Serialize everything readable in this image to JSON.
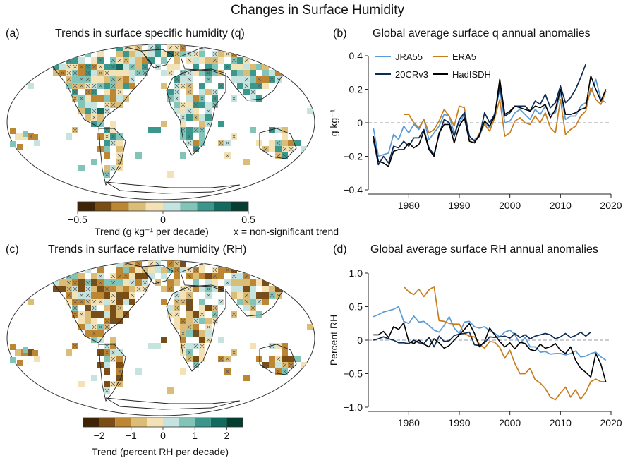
{
  "figure_title": "Changes in Surface Humidity",
  "colors": {
    "JRA55": "#5b9bd5",
    "ERA5": "#c87d1d",
    "20CRv3": "#0d2b55",
    "HadISDH": "#000000",
    "zero_line": "#9a9aa8",
    "land_outline": "#222222",
    "cross": "#555555"
  },
  "panels": {
    "a": {
      "letter": "(a)",
      "title": "Trends in surface specific humidity (q)",
      "colorbar": {
        "colors": [
          "#3f2306",
          "#7a4d14",
          "#bd8632",
          "#dcbd78",
          "#f2e2b6",
          "#c5e3df",
          "#83c4b9",
          "#3b968b",
          "#136b5f",
          "#053d30"
        ],
        "tick_labels": [
          "−0.5",
          "0",
          "0.5"
        ],
        "tick_values": [
          -0.5,
          0,
          0.5
        ],
        "range": [
          -0.5,
          0.5
        ],
        "label": "Trend (g kg⁻¹ per decade)",
        "note": "x = non-significant trend"
      }
    },
    "b": {
      "letter": "(b)",
      "title": "Global average surface q annual anomalies",
      "ylabel": "g kg⁻¹"
    },
    "c": {
      "letter": "(c)",
      "title": "Trends in surface relative humidity (RH)",
      "colorbar": {
        "colors": [
          "#3f2306",
          "#7a4d14",
          "#bd8632",
          "#dcbd78",
          "#f2e2b6",
          "#c5e3df",
          "#83c4b9",
          "#3b968b",
          "#136b5f",
          "#053d30"
        ],
        "tick_labels": [
          "−2",
          "−1",
          "0",
          "1",
          "2"
        ],
        "tick_values": [
          -2,
          -1,
          0,
          1,
          2
        ],
        "range": [
          -2.5,
          2.5
        ],
        "label": "Trend (percent RH per decade)"
      }
    },
    "d": {
      "letter": "(d)",
      "title": "Global average surface RH annual anomalies",
      "ylabel": "Percent RH"
    }
  },
  "chart_data": [
    {
      "type": "line",
      "panel": "b",
      "title": "Global average surface q annual anomalies",
      "xlabel": "",
      "ylabel": "g kg⁻¹",
      "xlim": [
        1972,
        2020
      ],
      "ylim": [
        -0.4,
        0.4
      ],
      "xticks": [
        1980,
        1990,
        2000,
        2010,
        2020
      ],
      "yticks": [
        -0.4,
        -0.2,
        0,
        0.2,
        0.4
      ],
      "ytick_labels": [
        "−0.4",
        "−0.2",
        "0",
        "0.2",
        "0.4"
      ],
      "zero_line": true,
      "legend": [
        "JRA55",
        "ERA5",
        "20CRv3",
        "HadISDH"
      ],
      "series": [
        {
          "name": "JRA55",
          "x_start": 1973,
          "values": [
            -0.03,
            -0.2,
            -0.19,
            -0.18,
            -0.07,
            -0.1,
            -0.02,
            -0.06,
            -0.01,
            -0.04,
            0.02,
            -0.1,
            -0.06,
            -0.02,
            0.05,
            0.04,
            -0.06,
            0.0,
            0.05,
            -0.1,
            -0.1,
            -0.08,
            0.0,
            -0.03,
            0.06,
            0.2,
            0.0,
            0.01,
            0.06,
            0.08,
            0.05,
            0.02,
            0.08,
            0.05,
            0.1,
            0.05,
            0.06,
            0.18,
            0.02,
            0.04,
            0.04,
            0.1,
            0.12,
            0.18,
            0.26,
            0.14,
            0.12
          ]
        },
        {
          "name": "ERA5",
          "x_start": 1979,
          "values": [
            0.05,
            0.05,
            0.0,
            -0.03,
            0.02,
            -0.06,
            -0.04,
            0.01,
            0.08,
            0.04,
            -0.02,
            0.1,
            0.09,
            -0.11,
            -0.12,
            -0.06,
            -0.01,
            -0.05,
            0.03,
            0.14,
            -0.08,
            -0.06,
            0.01,
            0.03,
            0.0,
            -0.01,
            0.04,
            0.0,
            0.06,
            -0.03,
            -0.06,
            0.14,
            -0.07,
            -0.04,
            -0.02,
            0.04,
            0.07,
            0.21,
            0.14,
            0.11,
            0.19
          ]
        },
        {
          "name": "20CRv3",
          "x_start": 1973,
          "values": [
            -0.1,
            -0.25,
            -0.2,
            -0.24,
            -0.14,
            -0.15,
            -0.11,
            -0.14,
            -0.09,
            -0.09,
            -0.04,
            -0.15,
            -0.19,
            -0.07,
            0.02,
            0.0,
            -0.08,
            0.02,
            0.06,
            -0.08,
            -0.11,
            -0.08,
            0.06,
            0.0,
            0.05,
            0.22,
            0.04,
            0.06,
            0.1,
            0.1,
            0.1,
            0.07,
            0.13,
            0.11,
            0.17,
            0.09,
            0.12,
            0.22,
            0.12,
            0.15,
            0.2,
            0.27,
            0.35
          ]
        },
        {
          "name": "HadISDH",
          "x_start": 1973,
          "values": [
            -0.08,
            -0.23,
            -0.24,
            -0.26,
            -0.17,
            -0.16,
            -0.16,
            -0.12,
            -0.15,
            -0.13,
            -0.05,
            -0.16,
            -0.2,
            -0.06,
            -0.01,
            -0.01,
            -0.12,
            -0.02,
            0.03,
            -0.11,
            -0.12,
            -0.07,
            0.01,
            -0.02,
            0.04,
            0.26,
            0.05,
            0.07,
            0.1,
            0.09,
            0.08,
            0.07,
            0.1,
            0.09,
            0.11,
            0.03,
            0.08,
            0.2,
            0.05,
            0.05,
            0.06,
            0.08,
            0.09,
            0.28,
            0.2,
            0.13,
            0.2
          ]
        }
      ]
    },
    {
      "type": "line",
      "panel": "d",
      "title": "Global average surface RH annual anomalies",
      "xlabel": "",
      "ylabel": "Percent RH",
      "xlim": [
        1972,
        2020
      ],
      "ylim": [
        -1.0,
        1.0
      ],
      "xticks": [
        1980,
        1990,
        2000,
        2010,
        2020
      ],
      "yticks": [
        -1.0,
        -0.5,
        0,
        0.5,
        1.0
      ],
      "ytick_labels": [
        "−1.0",
        "−0.5",
        "0",
        "0.5",
        "1.0"
      ],
      "zero_line": true,
      "series": [
        {
          "name": "JRA55",
          "x_start": 1973,
          "values": [
            0.35,
            0.38,
            0.42,
            0.44,
            0.46,
            0.5,
            0.28,
            0.25,
            0.36,
            0.27,
            0.28,
            0.22,
            0.15,
            0.12,
            0.22,
            0.35,
            0.18,
            0.1,
            0.27,
            0.28,
            0.2,
            0.18,
            0.2,
            0.14,
            0.1,
            0.05,
            0.12,
            0.15,
            0.08,
            -0.05,
            0.04,
            -0.1,
            -0.1,
            -0.18,
            -0.17,
            -0.21,
            -0.2,
            -0.2,
            -0.22,
            -0.2,
            -0.16,
            -0.25,
            -0.24,
            -0.2,
            -0.18,
            -0.25,
            -0.3
          ]
        },
        {
          "name": "ERA5",
          "x_start": 1979,
          "values": [
            0.8,
            0.72,
            0.68,
            0.76,
            0.65,
            0.75,
            0.8,
            0.29,
            0.28,
            0.25,
            0.24,
            0.24,
            0.1,
            0.06,
            0.05,
            -0.06,
            -0.12,
            -0.02,
            -0.03,
            -0.11,
            -0.27,
            -0.15,
            -0.35,
            -0.5,
            -0.5,
            -0.42,
            -0.59,
            -0.64,
            -0.72,
            -0.85,
            -0.89,
            -0.79,
            -0.7,
            -0.85,
            -0.74,
            -0.88,
            -0.78,
            -0.62,
            -0.58,
            -0.62,
            -0.62
          ]
        },
        {
          "name": "20CRv3",
          "x_start": 1973,
          "values": [
            0.0,
            0.02,
            0.05,
            0.02,
            0.0,
            -0.04,
            -0.04,
            -0.05,
            0.0,
            -0.04,
            -0.05,
            0.04,
            -0.1,
            0.06,
            -0.02,
            -0.01,
            0.07,
            0.09,
            0.1,
            0.12,
            -0.07,
            -0.08,
            -0.04,
            0.05,
            0.04,
            0.05,
            0.06,
            0.03,
            0.1,
            0.04,
            0.08,
            0.02,
            0.06,
            0.08,
            0.1,
            0.08,
            0.02,
            0.05,
            0.1,
            0.04,
            0.07,
            0.12,
            0.06,
            0.12
          ]
        },
        {
          "name": "HadISDH",
          "x_start": 1973,
          "values": [
            0.08,
            0.08,
            0.13,
            0.04,
            0.2,
            0.16,
            0.26,
            -0.02,
            -0.05,
            0.0,
            -0.06,
            -0.1,
            0.02,
            -0.04,
            -0.12,
            -0.08,
            0.0,
            0.08,
            0.16,
            0.25,
            0.1,
            -0.1,
            -0.02,
            0.18,
            0.08,
            -0.02,
            -0.1,
            -0.04,
            -0.13,
            -0.03,
            -0.05,
            -0.14,
            -0.16,
            -0.06,
            -0.12,
            -0.1,
            -0.05,
            -0.15,
            -0.2,
            -0.1,
            -0.3,
            -0.42,
            -0.48,
            -0.55,
            -0.2,
            -0.36,
            -0.63
          ]
        }
      ]
    }
  ]
}
